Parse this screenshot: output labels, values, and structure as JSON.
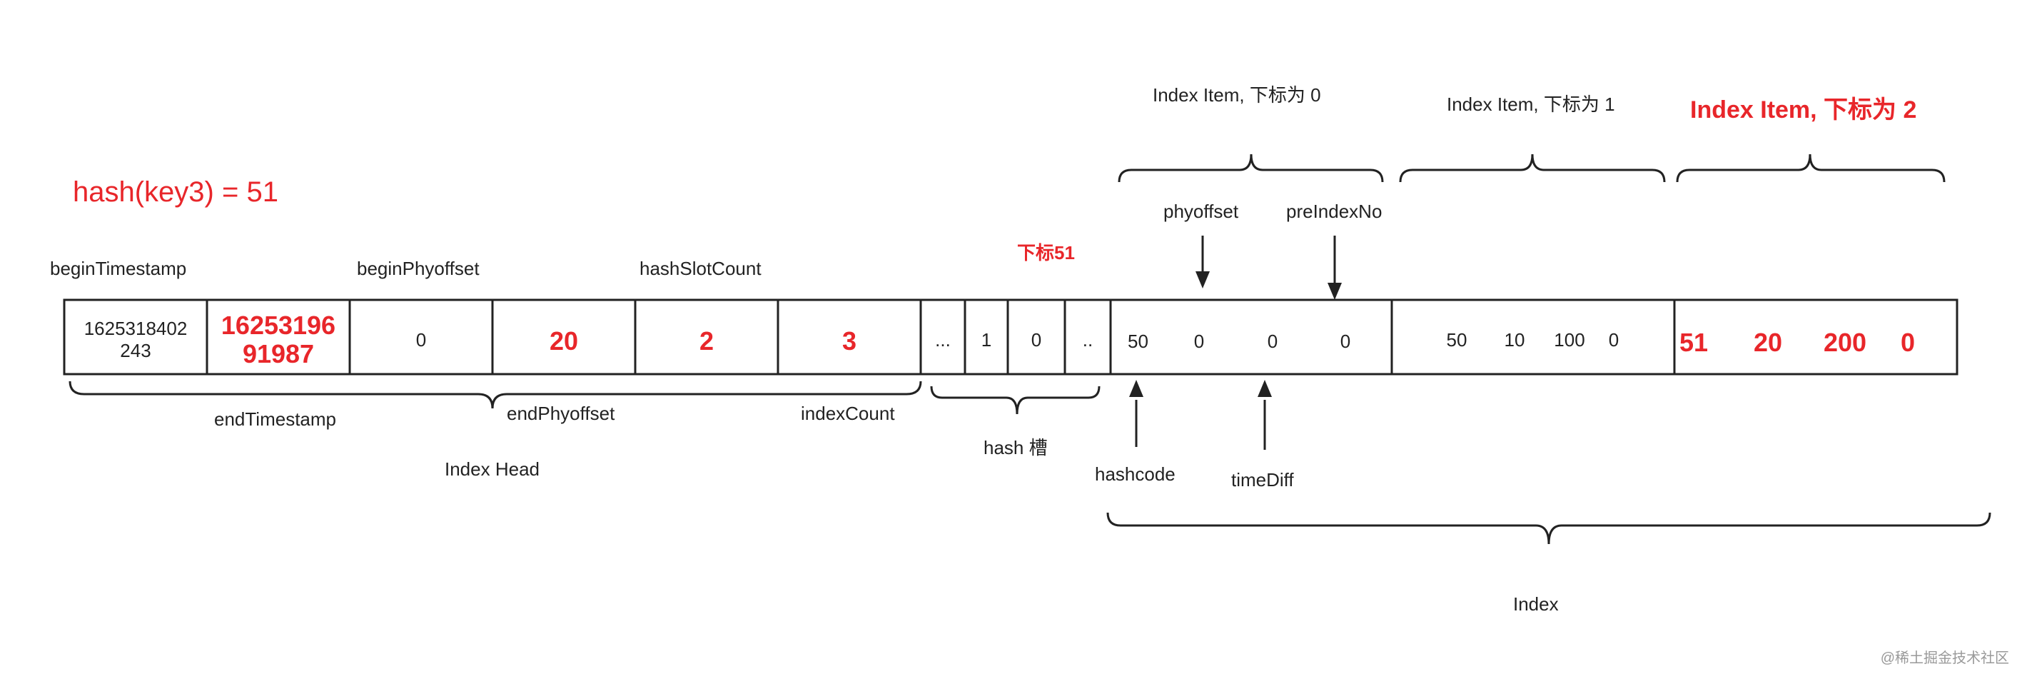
{
  "hash_expression": "hash(key3) = 51",
  "head": {
    "begin_timestamp_label": "beginTimestamp",
    "begin_phyoffset_label": "beginPhyoffset",
    "hash_slot_count_label": "hashSlotCount",
    "end_timestamp_label": "endTimestamp",
    "end_phyoffset_label": "endPhyoffset",
    "index_count_label": "indexCount",
    "title": "Index Head",
    "cells": {
      "begin_timestamp_line1": "1625318402",
      "begin_timestamp_line2": "243",
      "end_timestamp_line1": "16253196",
      "end_timestamp_line2": "91987",
      "begin_phyoffset": "0",
      "end_phyoffset": "20",
      "hash_slot_count": "2",
      "index_count": "3"
    }
  },
  "slots": {
    "title": "hash 槽",
    "pointer_label": "下标51",
    "cells": [
      "...",
      "1",
      "0",
      ".."
    ]
  },
  "index": {
    "title": "Index",
    "hashcode_label": "hashcode",
    "phyoffset_label": "phyoffset",
    "timediff_label": "timeDiff",
    "preindexno_label": "preIndexNo",
    "items": [
      {
        "title": "Index Item, 下标为 0",
        "values": [
          "50",
          "0",
          "0",
          "0"
        ]
      },
      {
        "title": "Index Item, 下标为 1",
        "values": [
          "50",
          "10",
          "100",
          "0"
        ]
      },
      {
        "title": "Index Item, 下标为 2",
        "values": [
          "51",
          "20",
          "200",
          "0"
        ]
      }
    ]
  },
  "watermark": "@稀土掘金技术社区"
}
